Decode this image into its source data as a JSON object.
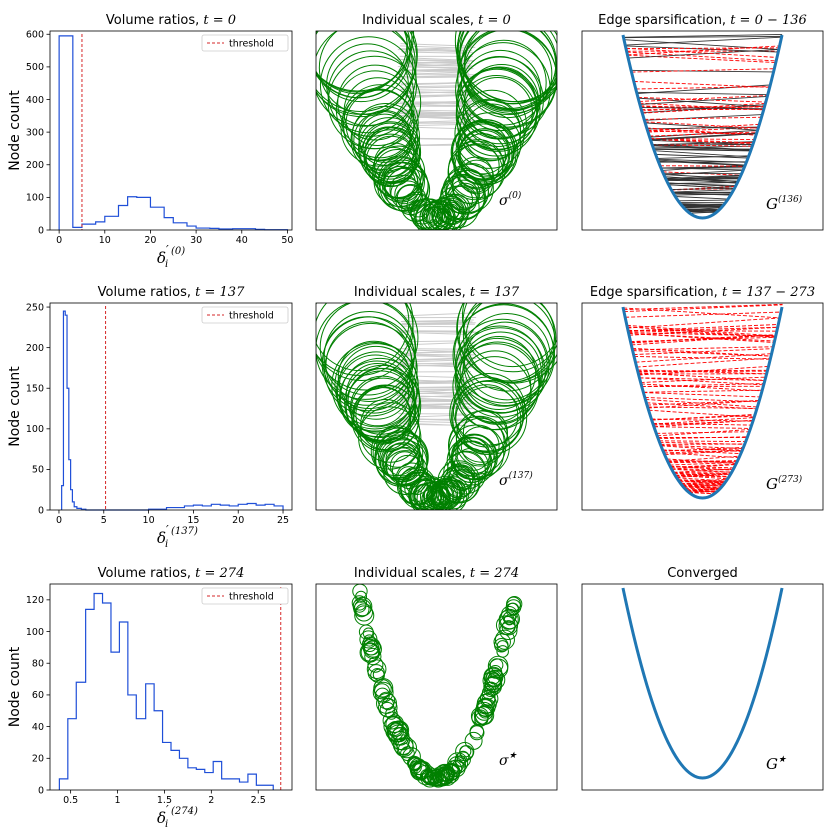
{
  "chart_data": [
    {
      "type": "histogram",
      "title": "Volume ratios, ",
      "title_math": "t = 0",
      "ylabel": "Node count",
      "xlabel_sup": "(0)",
      "xlim": [
        -2,
        51
      ],
      "ylim": [
        0,
        610
      ],
      "xticks": [
        0,
        10,
        20,
        30,
        40,
        50
      ],
      "yticks": [
        0,
        100,
        200,
        300,
        400,
        500,
        600
      ],
      "bin_edges": [
        0,
        3,
        5,
        8,
        10,
        13,
        15,
        17,
        20,
        23,
        25,
        28,
        30,
        33,
        35,
        38,
        40,
        43,
        45,
        48,
        50
      ],
      "counts": [
        595,
        8,
        18,
        25,
        42,
        75,
        102,
        100,
        70,
        38,
        22,
        12,
        6,
        5,
        3,
        4,
        4,
        2,
        1,
        1
      ],
      "threshold": 5,
      "legend": "threshold"
    },
    {
      "type": "scatter-circles",
      "title": "Individual scales, ",
      "title_math": "t = 0",
      "annotation": "σ",
      "annotation_sup": "(0)",
      "variant": "large"
    },
    {
      "type": "graph",
      "title": "Edge sparsification, ",
      "title_math": "t = 0 − 136",
      "annotation": "G",
      "annotation_sup": "(136)",
      "variant": "mixed"
    },
    {
      "type": "histogram",
      "title": "Volume ratios, ",
      "title_math": "t = 137",
      "ylabel": "Node count",
      "xlabel_sup": "(137)",
      "xlim": [
        -1,
        26
      ],
      "ylim": [
        0,
        255
      ],
      "xticks": [
        0,
        5,
        10,
        15,
        20,
        25
      ],
      "yticks": [
        0,
        50,
        100,
        150,
        200,
        250
      ],
      "bin_edges": [
        0.3,
        0.5,
        0.7,
        0.9,
        1.1,
        1.3,
        1.5,
        1.7,
        2.0,
        2.5,
        3.0,
        4.0,
        5.0,
        10,
        12,
        14,
        15,
        16,
        17,
        18,
        19,
        20,
        21,
        22,
        23,
        24,
        25
      ],
      "counts": [
        30,
        245,
        240,
        150,
        62,
        25,
        10,
        4,
        2,
        1,
        0,
        0,
        0,
        1,
        3,
        5,
        6,
        5,
        7,
        6,
        5,
        7,
        8,
        6,
        7,
        5
      ],
      "threshold": 5.2,
      "legend": "threshold"
    },
    {
      "type": "scatter-circles",
      "title": "Individual scales, ",
      "title_math": "t = 137",
      "annotation": "σ",
      "annotation_sup": "(137)",
      "variant": "large"
    },
    {
      "type": "graph",
      "title": "Edge sparsification, ",
      "title_math": "t = 137 − 273",
      "annotation": "G",
      "annotation_sup": "(273)",
      "variant": "red"
    },
    {
      "type": "histogram",
      "title": "Volume ratios, ",
      "title_math": "t = 274",
      "ylabel": "Node count",
      "xlabel_sup": "(274)",
      "xlim": [
        0.28,
        2.86
      ],
      "ylim": [
        0,
        130
      ],
      "xticks": [
        0.5,
        1.0,
        1.5,
        2.0,
        2.5
      ],
      "yticks": [
        0,
        20,
        40,
        60,
        80,
        100,
        120
      ],
      "bin_edges": [
        0.38,
        0.47,
        0.56,
        0.66,
        0.75,
        0.84,
        0.93,
        1.02,
        1.11,
        1.2,
        1.3,
        1.39,
        1.48,
        1.57,
        1.66,
        1.75,
        1.84,
        1.93,
        2.02,
        2.11,
        2.2,
        2.3,
        2.39,
        2.48,
        2.57,
        2.66
      ],
      "counts": [
        7,
        45,
        68,
        114,
        124,
        118,
        87,
        106,
        60,
        45,
        67,
        50,
        30,
        25,
        20,
        14,
        13,
        11,
        18,
        7,
        7,
        5,
        10,
        3,
        3
      ],
      "threshold": 2.74,
      "legend": "threshold"
    },
    {
      "type": "scatter-circles",
      "title": "Individual scales, ",
      "title_math": "t = 274",
      "annotation": "σ",
      "annotation_sup": "★",
      "variant": "small"
    },
    {
      "type": "graph",
      "title": "Converged",
      "title_math": "",
      "annotation": "G",
      "annotation_sup": "★",
      "variant": "none"
    }
  ],
  "colors": {
    "hist": "#1f4fd8",
    "threshold": "#d62728",
    "circles": "#008000",
    "curve": "#1f77b4",
    "edge_dark": "#333333",
    "edge_red": "#ff0000",
    "edge_gray": "#cccccc"
  }
}
